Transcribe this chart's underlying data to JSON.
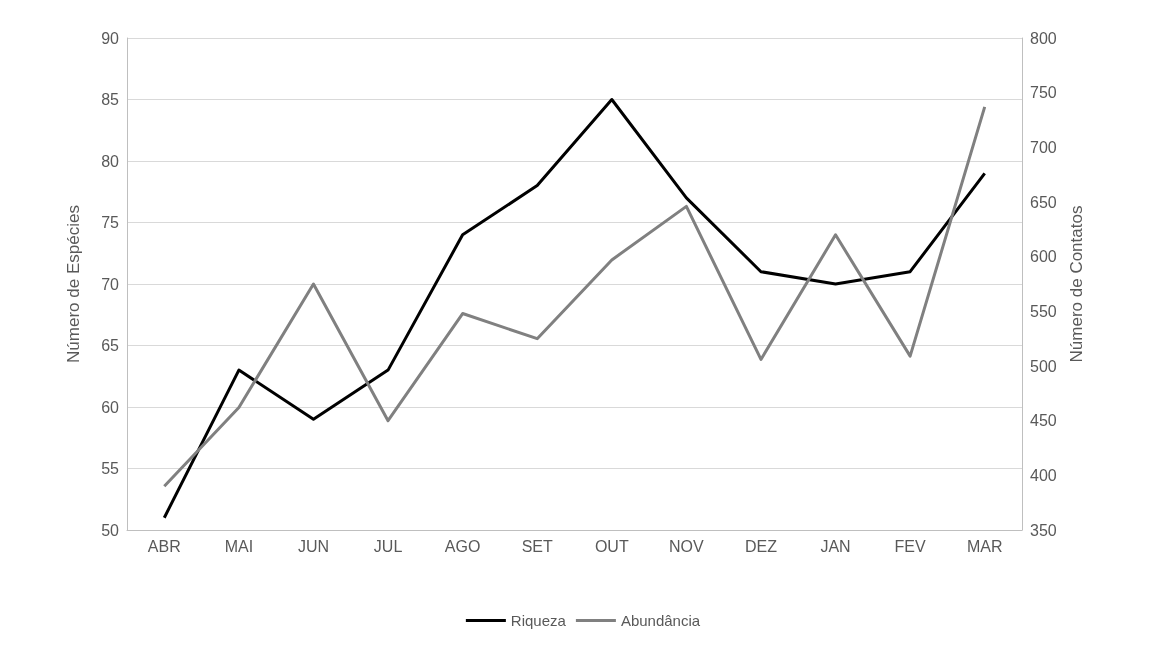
{
  "chart_data": {
    "type": "line",
    "categories": [
      "ABR",
      "MAI",
      "JUN",
      "JUL",
      "AGO",
      "SET",
      "OUT",
      "NOV",
      "DEZ",
      "JAN",
      "FEV",
      "MAR"
    ],
    "ylabel": "Número de Espécies",
    "y2label": "Número de Contatos",
    "series": [
      {
        "name": "Riqueza",
        "color": "#000000",
        "values": [
          51,
          63,
          59,
          63,
          74,
          78,
          85,
          77,
          71,
          70,
          71,
          79
        ]
      },
      {
        "name": "Abundância",
        "color": "#808080",
        "axis": "y2",
        "values": [
          390,
          462,
          575,
          450,
          548,
          525,
          597,
          646,
          506,
          620,
          509,
          737
        ]
      }
    ],
    "ylim": [
      50,
      90
    ],
    "yticks": [
      50,
      55,
      60,
      65,
      70,
      75,
      80,
      85,
      90
    ],
    "y2lim": [
      350,
      800
    ],
    "y2ticks": [
      350,
      400,
      450,
      500,
      550,
      600,
      650,
      700,
      750,
      800
    ],
    "grid": "y",
    "legend": "bottom",
    "marker": "none",
    "line_style": "solid"
  }
}
